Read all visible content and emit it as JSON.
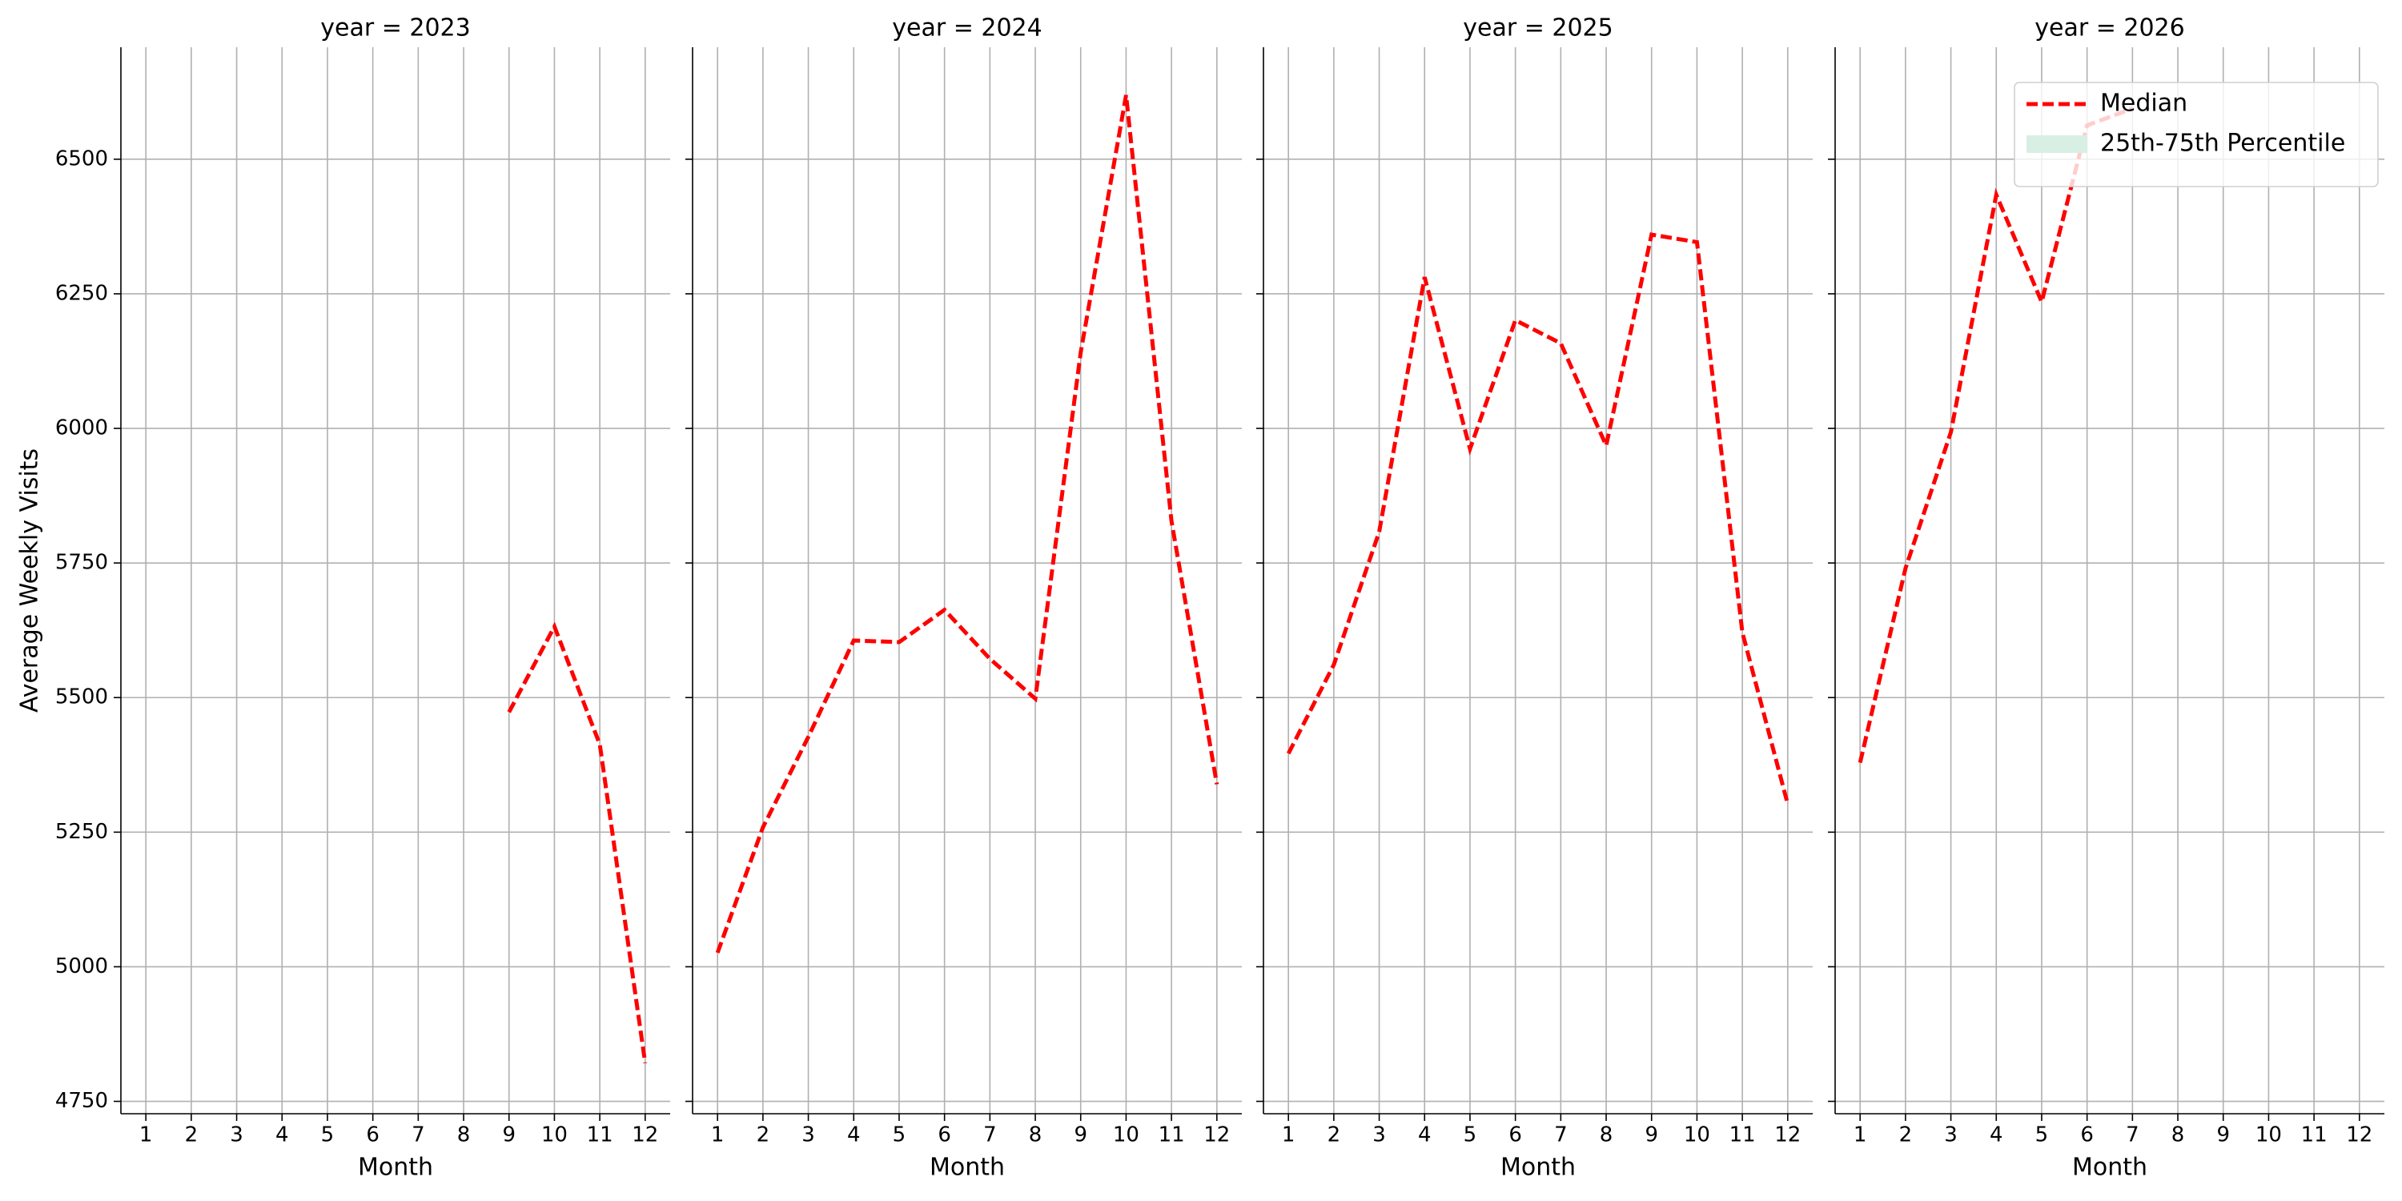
{
  "chart_data": [
    {
      "type": "line",
      "title": "year = 2023",
      "xlabel": "Month",
      "ylabel": "Average Weekly Visits",
      "x": [
        1,
        2,
        3,
        4,
        5,
        6,
        7,
        8,
        9,
        10,
        11,
        12
      ],
      "xticks": [
        1,
        2,
        3,
        4,
        5,
        6,
        7,
        8,
        9,
        10,
        11,
        12
      ],
      "xlim": [
        0.45,
        12.55
      ],
      "ylim": [
        4727,
        6708
      ],
      "yticks": [
        4750,
        5000,
        5250,
        5500,
        5750,
        6000,
        6250,
        6500
      ],
      "grid": true,
      "series": [
        {
          "name": "Median",
          "color": "#ff0000",
          "style": "dashed",
          "values": [
            null,
            null,
            null,
            null,
            null,
            null,
            null,
            null,
            5473,
            5632,
            5413,
            4821
          ]
        }
      ]
    },
    {
      "type": "line",
      "title": "year = 2024",
      "xlabel": "Month",
      "x": [
        1,
        2,
        3,
        4,
        5,
        6,
        7,
        8,
        9,
        10,
        11,
        12
      ],
      "xticks": [
        1,
        2,
        3,
        4,
        5,
        6,
        7,
        8,
        9,
        10,
        11,
        12
      ],
      "xlim": [
        0.45,
        12.55
      ],
      "grid": true,
      "series": [
        {
          "name": "Median",
          "color": "#ff0000",
          "style": "dashed",
          "values": [
            5026,
            5259,
            5427,
            5606,
            5603,
            5663,
            5572,
            5498,
            6141,
            6619,
            5828,
            5339
          ]
        }
      ]
    },
    {
      "type": "line",
      "title": "year = 2025",
      "xlabel": "Month",
      "x": [
        1,
        2,
        3,
        4,
        5,
        6,
        7,
        8,
        9,
        10,
        11,
        12
      ],
      "xticks": [
        1,
        2,
        3,
        4,
        5,
        6,
        7,
        8,
        9,
        10,
        11,
        12
      ],
      "xlim": [
        0.45,
        12.55
      ],
      "grid": true,
      "series": [
        {
          "name": "Median",
          "color": "#ff0000",
          "style": "dashed",
          "values": [
            5396,
            5561,
            5808,
            6281,
            5962,
            6201,
            6158,
            5968,
            6360,
            6346,
            5621,
            5302
          ]
        }
      ]
    },
    {
      "type": "line",
      "title": "year = 2026",
      "xlabel": "Month",
      "x": [
        1,
        2,
        3,
        4,
        5,
        6,
        7,
        8,
        9,
        10,
        11,
        12
      ],
      "xticks": [
        1,
        2,
        3,
        4,
        5,
        6,
        7,
        8,
        9,
        10,
        11,
        12
      ],
      "xlim": [
        0.45,
        12.55
      ],
      "grid": true,
      "series": [
        {
          "name": "Median",
          "color": "#ff0000",
          "style": "dashed",
          "values": [
            5379,
            5740,
            5993,
            6434,
            6235,
            6563,
            6594,
            null,
            null,
            null,
            null,
            null
          ]
        }
      ],
      "legend": {
        "position": "upper right",
        "items": [
          {
            "name": "Median",
            "color": "#ff0000",
            "style": "dashed"
          },
          {
            "name": "25th-75th Percentile",
            "color": "#d8efe4",
            "style": "band"
          }
        ]
      }
    }
  ]
}
